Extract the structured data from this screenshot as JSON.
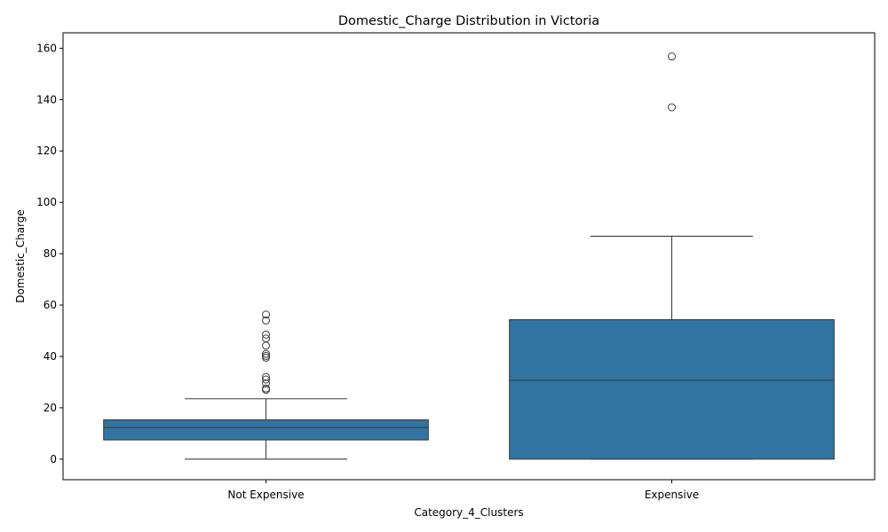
{
  "chart_data": {
    "type": "box",
    "title": "Domestic_Charge Distribution in Victoria",
    "xlabel": "Category_4_Clusters",
    "ylabel": "Domestic_Charge",
    "ylim": [
      -8,
      166
    ],
    "yticks": [
      0,
      20,
      40,
      60,
      80,
      100,
      120,
      140,
      160
    ],
    "grid": false,
    "box_color": "#3274a1",
    "line_color": "#3d3d3d",
    "categories": [
      "Not Expensive",
      "Expensive"
    ],
    "boxes": [
      {
        "category": "Not Expensive",
        "whisker_low": 0,
        "q1": 7.5,
        "median": 12.3,
        "q3": 15.3,
        "whisker_high": 23.5,
        "outliers": [
          27.0,
          27.5,
          29.5,
          31.0,
          32.0,
          39.5,
          40.2,
          41.0,
          44.2,
          47.0,
          48.5,
          54.0,
          56.3
        ]
      },
      {
        "category": "Expensive",
        "whisker_low": 0,
        "q1": 0,
        "median": 30.7,
        "q3": 54.3,
        "whisker_high": 86.8,
        "outliers": [
          137.0,
          156.8
        ]
      }
    ]
  }
}
